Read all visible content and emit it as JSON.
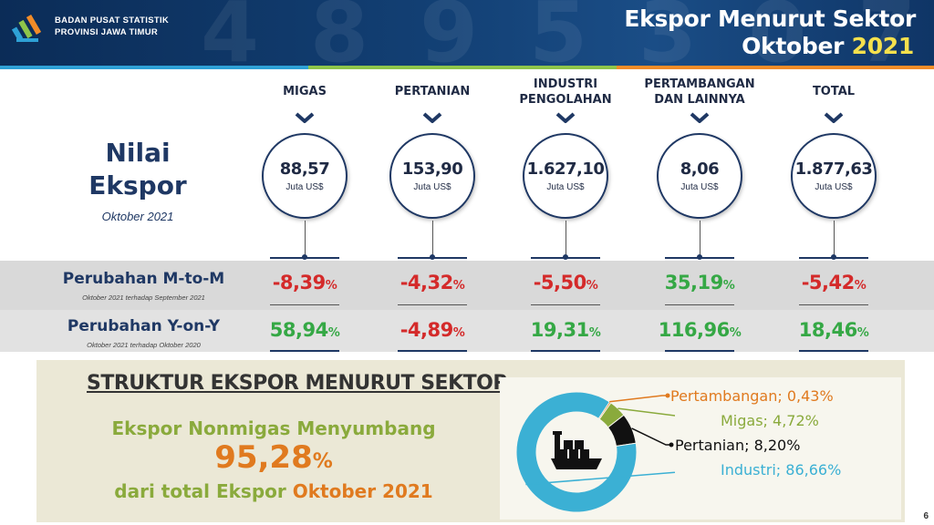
{
  "header": {
    "org_line1": "BADAN PUSAT STATISTIK",
    "org_line2": "PROVINSI JAWA TIMUR",
    "title_line1": "Ekspor Menurut Sektor",
    "title_month": "Oktober",
    "title_year": "2021",
    "bg_digits": "4 8 9 5 3 0 7"
  },
  "nilai": {
    "title_line1": "Nilai",
    "title_line2": "Ekspor",
    "subtitle": "Oktober 2021"
  },
  "sectors": [
    {
      "label_line1": "MIGAS",
      "label_line2": "",
      "value": "88,57",
      "unit": "Juta US$",
      "mtm": "-8,39",
      "yoy": "58,94",
      "mtm_sign": "neg",
      "yoy_sign": "pos"
    },
    {
      "label_line1": "PERTANIAN",
      "label_line2": "",
      "value": "153,90",
      "unit": "Juta US$",
      "mtm": "-4,32",
      "yoy": "-4,89",
      "mtm_sign": "neg",
      "yoy_sign": "neg"
    },
    {
      "label_line1": "INDUSTRI",
      "label_line2": "PENGOLAHAN",
      "value": "1.627,10",
      "unit": "Juta US$",
      "mtm": "-5,50",
      "yoy": "19,31",
      "mtm_sign": "neg",
      "yoy_sign": "pos"
    },
    {
      "label_line1": "PERTAMBANGAN",
      "label_line2": "DAN LAINNYA",
      "value": "8,06",
      "unit": "Juta US$",
      "mtm": "35,19",
      "yoy": "116,96",
      "mtm_sign": "pos",
      "yoy_sign": "pos"
    },
    {
      "label_line1": "TOTAL",
      "label_line2": "",
      "value": "1.877,63",
      "unit": "Juta US$",
      "mtm": "-5,42",
      "yoy": "18,46",
      "mtm_sign": "neg",
      "yoy_sign": "pos"
    }
  ],
  "pct_sign": "%",
  "rows": {
    "mtm_label": "Perubahan M-to-M",
    "mtm_sub": "Oktober 2021 terhadap September 2021",
    "yoy_label": "Perubahan Y-on-Y",
    "yoy_sub": "Oktober 2021 terhadap Oktober 2020"
  },
  "structure": {
    "title": "STRUKTUR EKSPOR MENURUT SEKTOR",
    "line1": "Ekspor Nonmigas Menyumbang",
    "value": "95,28",
    "line3_a": "dari total Ekspor",
    "line3_b": "Oktober 2021"
  },
  "chart_data": {
    "type": "pie",
    "categories": [
      "Pertambangan",
      "Migas",
      "Pertanian",
      "Industri"
    ],
    "values": [
      0.43,
      4.72,
      8.2,
      86.66
    ],
    "labels": [
      "Pertambangan;  0,43%",
      "Migas;  4,72%",
      "Pertanian; 8,20%",
      "Industri;  86,66%"
    ],
    "colors": [
      "#e07a1f",
      "#8aaa3c",
      "#111111",
      "#3bb0d4"
    ]
  },
  "colors": {
    "navy": "#1f3864",
    "negative": "#d42a2a",
    "positive": "#35a845",
    "orange": "#e07a1f",
    "green": "#8aaa3c"
  },
  "icons": {
    "logo": "bps-logo-icon",
    "chevron": "chevron-down-icon",
    "ship": "cargo-ship-icon"
  },
  "page_number": "6"
}
